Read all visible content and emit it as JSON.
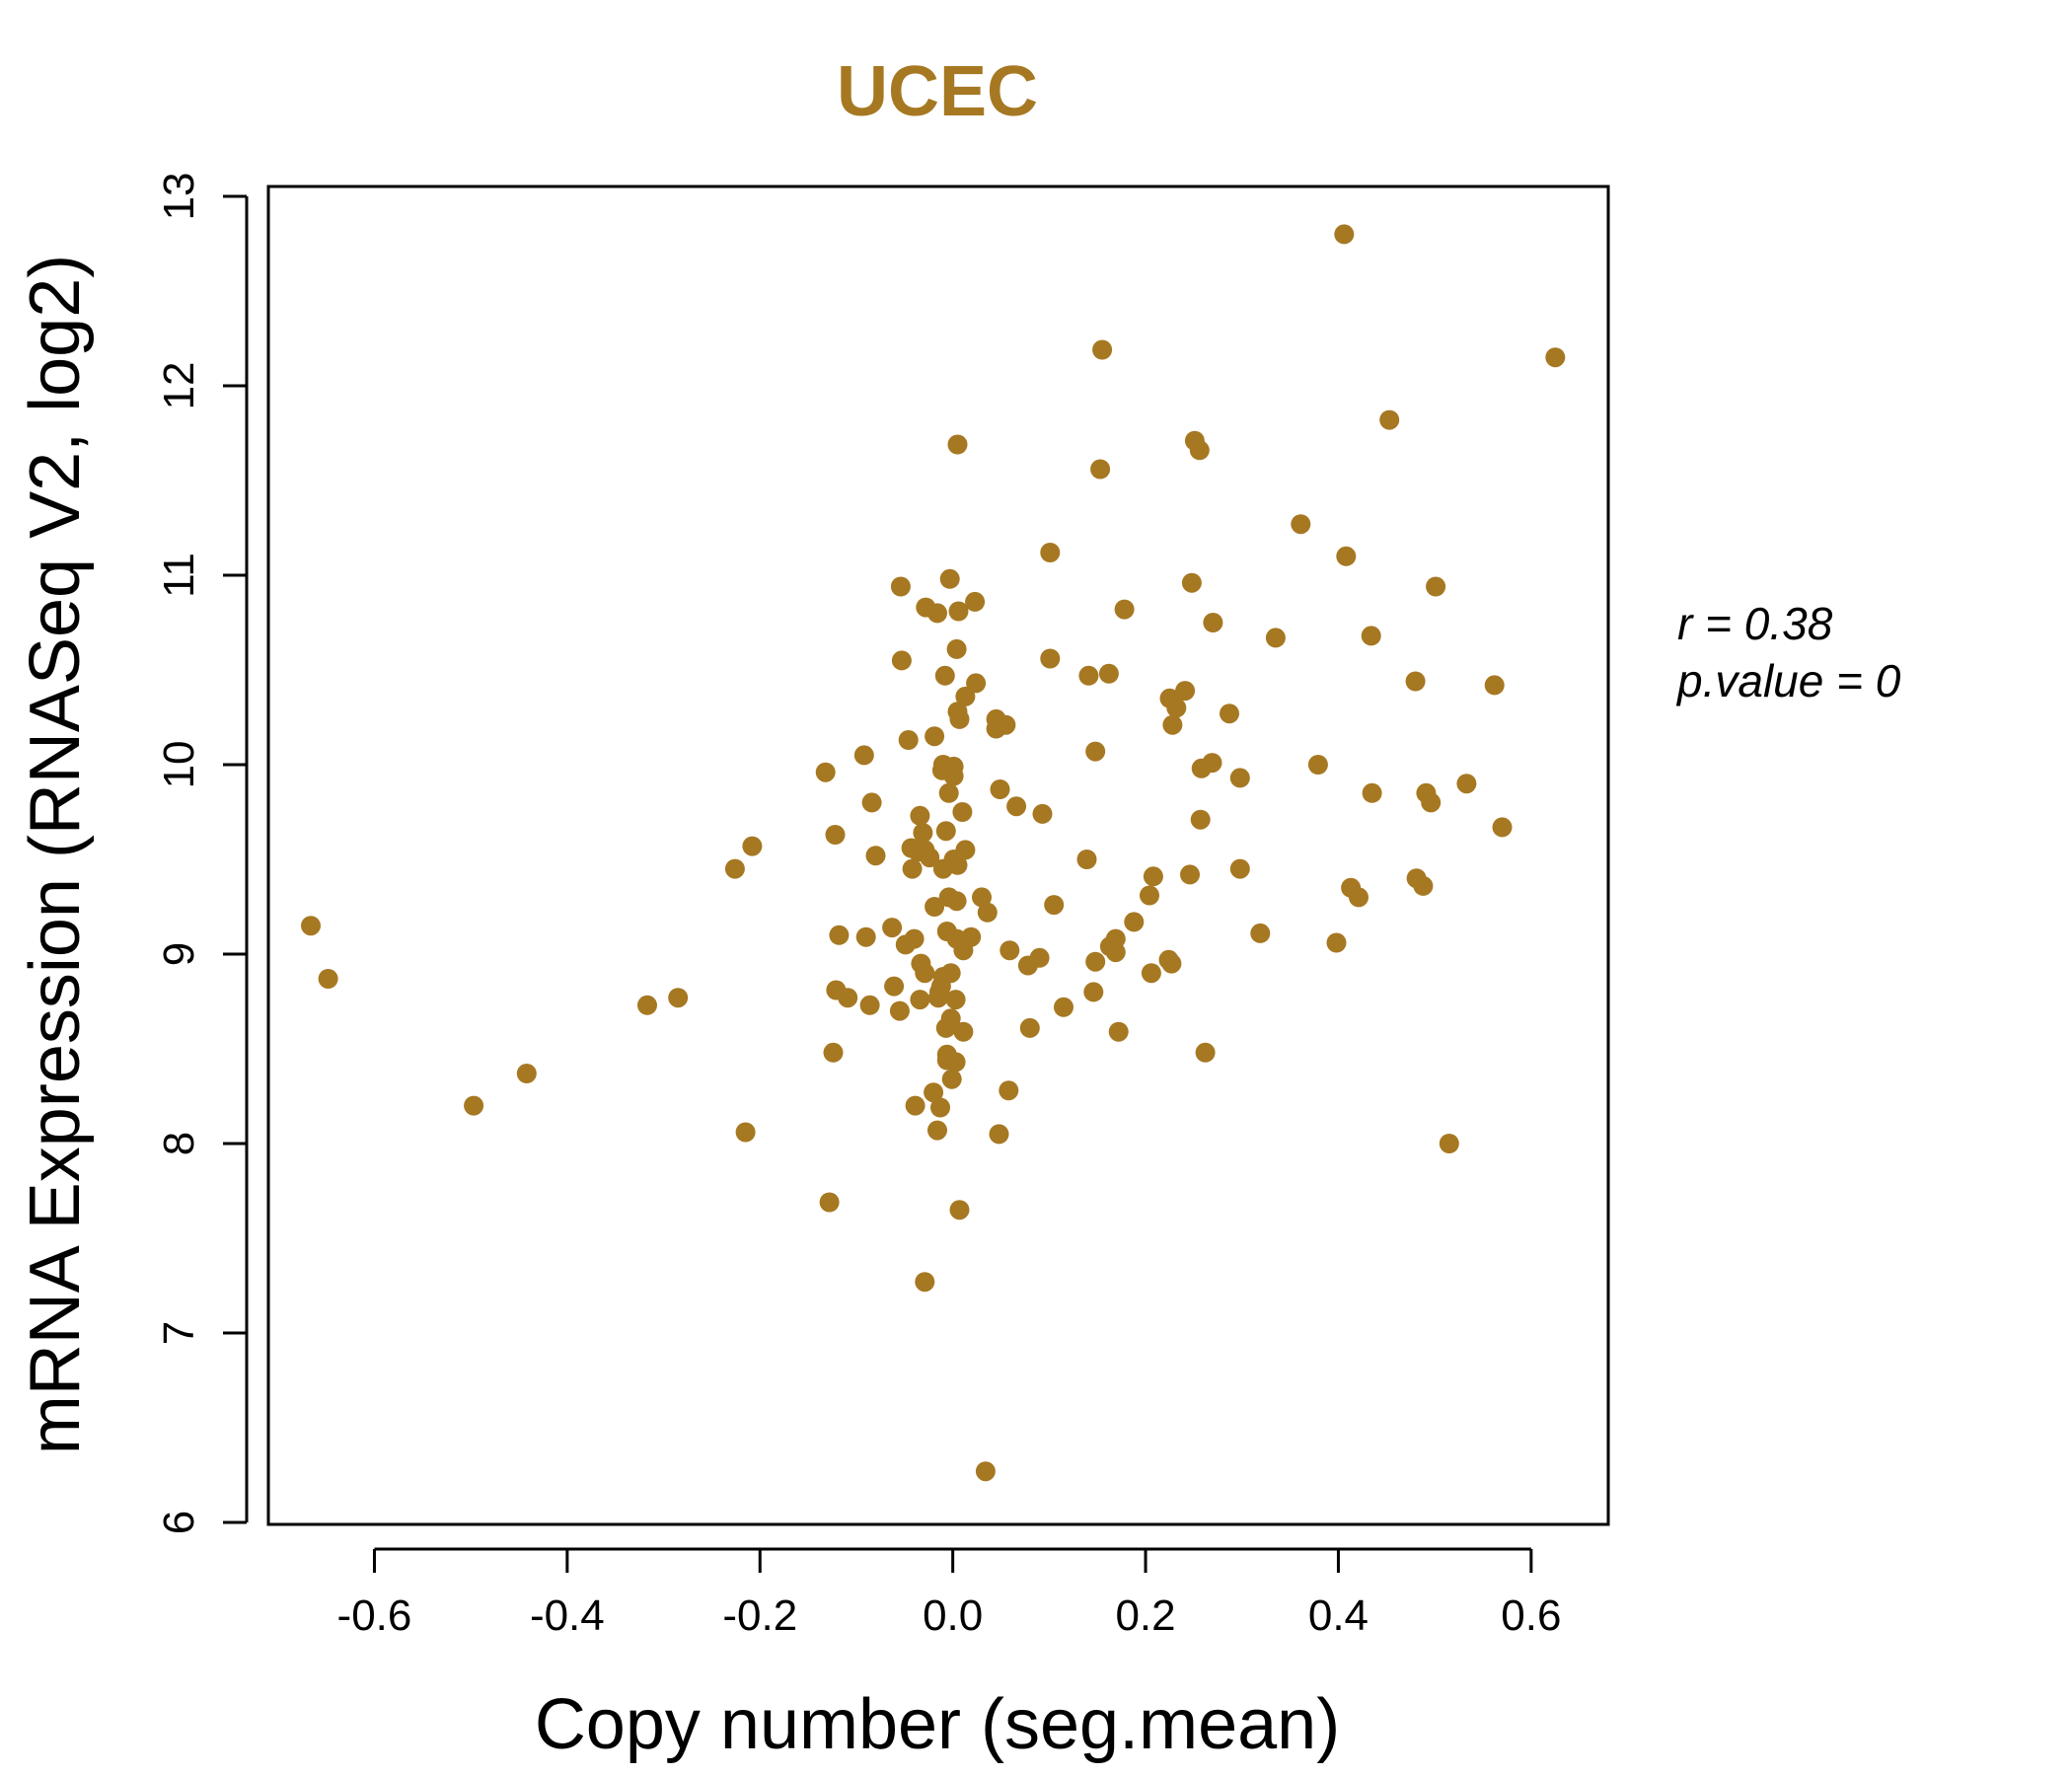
{
  "colors": {
    "accent": "#A67822",
    "axis": "#000000",
    "background": "#FFFFFF"
  },
  "chart_data": {
    "type": "scatter",
    "title": "UCEC",
    "xlabel": "Copy number (seg.mean)",
    "ylabel": "mRNA Expression (RNASeq V2, log2)",
    "xlim": [
      -0.71,
      0.68
    ],
    "ylim": [
      6,
      13
    ],
    "xticks": [
      -0.6,
      -0.4,
      -0.2,
      0.0,
      0.2,
      0.4,
      0.6
    ],
    "xtick_labels": [
      "-0.6",
      "-0.4",
      "-0.2",
      "0.0",
      "0.2",
      "0.4",
      "0.6"
    ],
    "yticks": [
      6,
      7,
      8,
      9,
      10,
      11,
      12,
      13
    ],
    "ytick_labels": [
      "6",
      "7",
      "8",
      "9",
      "10",
      "11",
      "12",
      "13"
    ],
    "grid": false,
    "annotations": {
      "r": "r = 0.38",
      "p": "p.value = 0"
    },
    "points": [
      {
        "x": 0.406,
        "y": 12.8
      },
      {
        "x": 0.155,
        "y": 12.19
      },
      {
        "x": 0.625,
        "y": 12.15
      },
      {
        "x": 0.453,
        "y": 11.82
      },
      {
        "x": 0.251,
        "y": 11.71
      },
      {
        "x": 0.005,
        "y": 11.69
      },
      {
        "x": 0.256,
        "y": 11.66
      },
      {
        "x": 0.153,
        "y": 11.56
      },
      {
        "x": 0.361,
        "y": 11.27
      },
      {
        "x": 0.101,
        "y": 11.12
      },
      {
        "x": 0.408,
        "y": 11.1
      },
      {
        "x": -0.003,
        "y": 10.98
      },
      {
        "x": 0.248,
        "y": 10.96
      },
      {
        "x": 0.501,
        "y": 10.94
      },
      {
        "x": -0.054,
        "y": 10.94
      },
      {
        "x": 0.023,
        "y": 10.86
      },
      {
        "x": -0.028,
        "y": 10.83
      },
      {
        "x": 0.178,
        "y": 10.82
      },
      {
        "x": 0.006,
        "y": 10.81
      },
      {
        "x": -0.016,
        "y": 10.8
      },
      {
        "x": 0.27,
        "y": 10.75
      },
      {
        "x": 0.335,
        "y": 10.67
      },
      {
        "x": 0.434,
        "y": 10.68
      },
      {
        "x": 0.004,
        "y": 10.61
      },
      {
        "x": 0.101,
        "y": 10.56
      },
      {
        "x": -0.053,
        "y": 10.55
      },
      {
        "x": 0.162,
        "y": 10.48
      },
      {
        "x": 0.141,
        "y": 10.47
      },
      {
        "x": -0.008,
        "y": 10.47
      },
      {
        "x": 0.48,
        "y": 10.44
      },
      {
        "x": 0.024,
        "y": 10.43
      },
      {
        "x": 0.562,
        "y": 10.42
      },
      {
        "x": 0.241,
        "y": 10.39
      },
      {
        "x": 0.013,
        "y": 10.36
      },
      {
        "x": 0.225,
        "y": 10.35
      },
      {
        "x": 0.232,
        "y": 10.3
      },
      {
        "x": 0.005,
        "y": 10.28
      },
      {
        "x": 0.007,
        "y": 10.24
      },
      {
        "x": 0.287,
        "y": 10.27
      },
      {
        "x": 0.045,
        "y": 10.24
      },
      {
        "x": 0.228,
        "y": 10.21
      },
      {
        "x": 0.055,
        "y": 10.21
      },
      {
        "x": 0.045,
        "y": 10.19
      },
      {
        "x": -0.019,
        "y": 10.15
      },
      {
        "x": -0.046,
        "y": 10.13
      },
      {
        "x": 0.148,
        "y": 10.07
      },
      {
        "x": -0.092,
        "y": 10.05
      },
      {
        "x": 0.269,
        "y": 10.01
      },
      {
        "x": 0.379,
        "y": 10.0
      },
      {
        "x": -0.01,
        "y": 10.0
      },
      {
        "x": 0.001,
        "y": 9.99
      },
      {
        "x": 0.258,
        "y": 9.98
      },
      {
        "x": -0.011,
        "y": 9.97
      },
      {
        "x": -0.132,
        "y": 9.96
      },
      {
        "x": 0.001,
        "y": 9.94
      },
      {
        "x": 0.298,
        "y": 9.93
      },
      {
        "x": 0.533,
        "y": 9.9
      },
      {
        "x": 0.049,
        "y": 9.87
      },
      {
        "x": 0.435,
        "y": 9.85
      },
      {
        "x": 0.491,
        "y": 9.85
      },
      {
        "x": -0.004,
        "y": 9.85
      },
      {
        "x": -0.084,
        "y": 9.8
      },
      {
        "x": 0.496,
        "y": 9.8
      },
      {
        "x": 0.066,
        "y": 9.78
      },
      {
        "x": 0.01,
        "y": 9.75
      },
      {
        "x": 0.093,
        "y": 9.74
      },
      {
        "x": -0.034,
        "y": 9.73
      },
      {
        "x": 0.257,
        "y": 9.71
      },
      {
        "x": 0.57,
        "y": 9.67
      },
      {
        "x": -0.007,
        "y": 9.65
      },
      {
        "x": -0.031,
        "y": 9.64
      },
      {
        "x": -0.122,
        "y": 9.63
      },
      {
        "x": -0.208,
        "y": 9.57
      },
      {
        "x": -0.043,
        "y": 9.56
      },
      {
        "x": 0.013,
        "y": 9.55
      },
      {
        "x": -0.029,
        "y": 9.55
      },
      {
        "x": -0.036,
        "y": 9.54
      },
      {
        "x": -0.08,
        "y": 9.52
      },
      {
        "x": -0.024,
        "y": 9.51
      },
      {
        "x": 0.139,
        "y": 9.5
      },
      {
        "x": 0.001,
        "y": 9.5
      },
      {
        "x": 0.005,
        "y": 9.47
      },
      {
        "x": -0.226,
        "y": 9.45
      },
      {
        "x": -0.042,
        "y": 9.45
      },
      {
        "x": 0.298,
        "y": 9.45
      },
      {
        "x": -0.01,
        "y": 9.45
      },
      {
        "x": 0.246,
        "y": 9.42
      },
      {
        "x": 0.208,
        "y": 9.41
      },
      {
        "x": 0.481,
        "y": 9.4
      },
      {
        "x": 0.488,
        "y": 9.36
      },
      {
        "x": 0.413,
        "y": 9.35
      },
      {
        "x": 0.204,
        "y": 9.31
      },
      {
        "x": 0.421,
        "y": 9.3
      },
      {
        "x": 0.03,
        "y": 9.3
      },
      {
        "x": -0.004,
        "y": 9.3
      },
      {
        "x": 0.004,
        "y": 9.28
      },
      {
        "x": 0.105,
        "y": 9.26
      },
      {
        "x": -0.019,
        "y": 9.25
      },
      {
        "x": 0.036,
        "y": 9.22
      },
      {
        "x": 0.188,
        "y": 9.17
      },
      {
        "x": -0.666,
        "y": 9.15
      },
      {
        "x": -0.063,
        "y": 9.14
      },
      {
        "x": -0.006,
        "y": 9.12
      },
      {
        "x": 0.319,
        "y": 9.11
      },
      {
        "x": -0.118,
        "y": 9.1
      },
      {
        "x": 0.019,
        "y": 9.09
      },
      {
        "x": -0.09,
        "y": 9.09
      },
      {
        "x": 0.004,
        "y": 9.08
      },
      {
        "x": -0.04,
        "y": 9.08
      },
      {
        "x": 0.169,
        "y": 9.08
      },
      {
        "x": 0.398,
        "y": 9.06
      },
      {
        "x": -0.049,
        "y": 9.05
      },
      {
        "x": 0.163,
        "y": 9.04
      },
      {
        "x": 0.011,
        "y": 9.02
      },
      {
        "x": 0.059,
        "y": 9.02
      },
      {
        "x": 0.169,
        "y": 9.01
      },
      {
        "x": 0.09,
        "y": 8.98
      },
      {
        "x": 0.224,
        "y": 8.97
      },
      {
        "x": 0.148,
        "y": 8.96
      },
      {
        "x": -0.033,
        "y": 8.95
      },
      {
        "x": 0.227,
        "y": 8.95
      },
      {
        "x": 0.078,
        "y": 8.94
      },
      {
        "x": 0.206,
        "y": 8.9
      },
      {
        "x": -0.029,
        "y": 8.9
      },
      {
        "x": -0.002,
        "y": 8.9
      },
      {
        "x": -0.01,
        "y": 8.88
      },
      {
        "x": -0.648,
        "y": 8.87
      },
      {
        "x": -0.012,
        "y": 8.83
      },
      {
        "x": -0.061,
        "y": 8.83
      },
      {
        "x": -0.121,
        "y": 8.81
      },
      {
        "x": -0.014,
        "y": 8.8
      },
      {
        "x": 0.146,
        "y": 8.8
      },
      {
        "x": -0.285,
        "y": 8.77
      },
      {
        "x": -0.109,
        "y": 8.77
      },
      {
        "x": -0.015,
        "y": 8.77
      },
      {
        "x": 0.003,
        "y": 8.76
      },
      {
        "x": -0.034,
        "y": 8.76
      },
      {
        "x": -0.317,
        "y": 8.73
      },
      {
        "x": -0.086,
        "y": 8.73
      },
      {
        "x": 0.115,
        "y": 8.72
      },
      {
        "x": -0.055,
        "y": 8.7
      },
      {
        "x": -0.002,
        "y": 8.66
      },
      {
        "x": -0.007,
        "y": 8.61
      },
      {
        "x": 0.08,
        "y": 8.61
      },
      {
        "x": 0.011,
        "y": 8.59
      },
      {
        "x": 0.172,
        "y": 8.59
      },
      {
        "x": -0.124,
        "y": 8.48
      },
      {
        "x": 0.262,
        "y": 8.48
      },
      {
        "x": -0.006,
        "y": 8.47
      },
      {
        "x": -0.006,
        "y": 8.44
      },
      {
        "x": 0.003,
        "y": 8.43
      },
      {
        "x": -0.442,
        "y": 8.37
      },
      {
        "x": -0.001,
        "y": 8.34
      },
      {
        "x": 0.058,
        "y": 8.28
      },
      {
        "x": -0.02,
        "y": 8.27
      },
      {
        "x": -0.497,
        "y": 8.2
      },
      {
        "x": -0.039,
        "y": 8.2
      },
      {
        "x": -0.013,
        "y": 8.19
      },
      {
        "x": -0.016,
        "y": 8.07
      },
      {
        "x": -0.215,
        "y": 8.06
      },
      {
        "x": 0.048,
        "y": 8.05
      },
      {
        "x": 0.515,
        "y": 8.0
      },
      {
        "x": -0.128,
        "y": 7.69
      },
      {
        "x": 0.007,
        "y": 7.65
      },
      {
        "x": -0.029,
        "y": 7.27
      },
      {
        "x": 0.034,
        "y": 6.27
      }
    ]
  }
}
